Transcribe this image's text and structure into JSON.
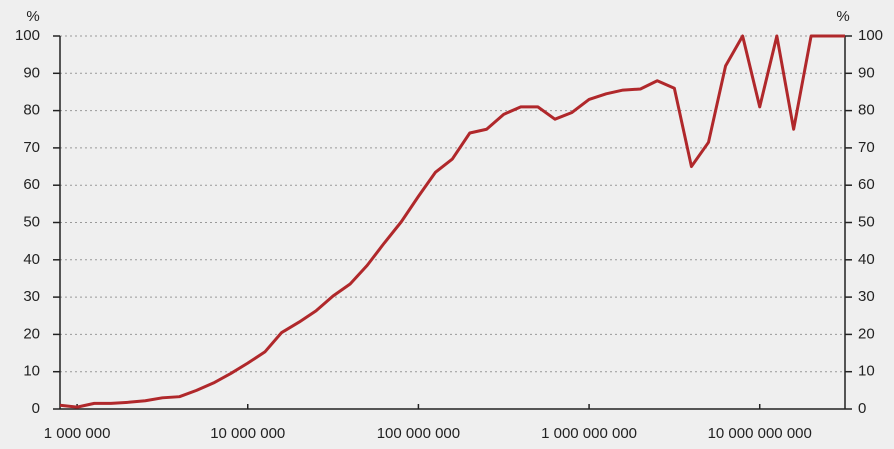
{
  "chart_data": {
    "type": "line",
    "y_label": "%",
    "y2_label": "%",
    "x": [
      794000,
      1000000,
      1260000,
      1580000,
      2000000,
      2510000,
      3160000,
      3980000,
      5010000,
      6310000,
      7940000,
      10000000,
      12600000,
      15800000,
      20000000,
      25100000,
      31600000,
      39800000,
      50100000,
      63100000,
      79400000,
      100000000,
      126000000,
      158000000,
      200000000,
      251000000,
      316000000,
      398000000,
      501000000,
      631000000,
      794000000,
      1000000000,
      1260000000,
      1580000000,
      2000000000,
      2510000000,
      3160000000,
      3980000000,
      5010000000,
      6310000000,
      7940000000,
      10000000000,
      12600000000,
      15800000000,
      20000000000,
      31600000000
    ],
    "series": [
      {
        "color": "#b0282b",
        "values": [
          1,
          0.5,
          1.5,
          1.5,
          1.8,
          2.2,
          3,
          3.3,
          5,
          7,
          9.5,
          12.3,
          15.3,
          20.5,
          23.3,
          26.3,
          30.3,
          33.5,
          38.5,
          44.5,
          50.2,
          57,
          63.5,
          67,
          74,
          75,
          79,
          81,
          81,
          77.7,
          79.5,
          83,
          84.5,
          85.5,
          85.8,
          88,
          86,
          65,
          71.5,
          92,
          100,
          81,
          100,
          75,
          100,
          100
        ]
      }
    ],
    "xlim": [
      794000,
      31600000000
    ],
    "xscale": "log",
    "xticks": [
      {
        "value": 1000000,
        "label": "1 000 000"
      },
      {
        "value": 10000000,
        "label": "10 000 000"
      },
      {
        "value": 100000000,
        "label": "100 000 000"
      },
      {
        "value": 1000000000,
        "label": "1 000 000 000"
      },
      {
        "value": 10000000000,
        "label": "10 000 000 000"
      }
    ],
    "ylim": [
      0,
      100
    ],
    "yticks": [
      0,
      10,
      20,
      30,
      40,
      50,
      60,
      70,
      80,
      90,
      100
    ],
    "y2lim": [
      0,
      100
    ],
    "y2ticks": [
      0,
      10,
      20,
      30,
      40,
      50,
      60,
      70,
      80,
      90,
      100
    ],
    "grid": true
  }
}
